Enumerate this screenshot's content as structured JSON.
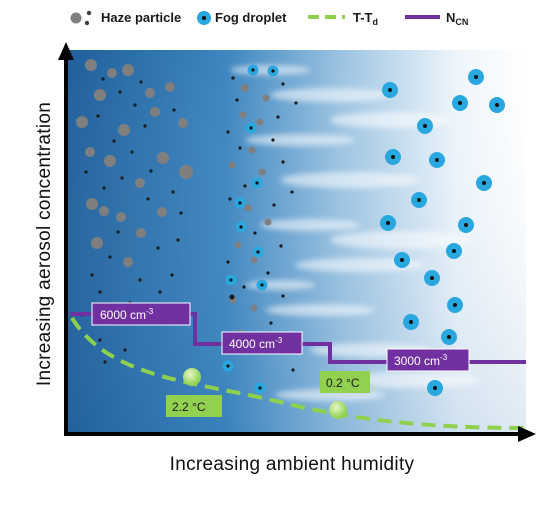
{
  "legend": {
    "haze_label": "Haze particle",
    "fog_label": "Fog droplet",
    "dewpoint_label": "T-T",
    "dewpoint_sub": "d",
    "ncn_label": "N",
    "ncn_sub": "CN"
  },
  "axes": {
    "x_title": "Increasing  ambient humidity",
    "y_title": "Increasing aerosol  concentration"
  },
  "ncn_levels": [
    {
      "value": "6000 cm",
      "exp": "-3"
    },
    {
      "value": "4000 cm",
      "exp": "-3"
    },
    {
      "value": "3000 cm",
      "exp": "-3"
    }
  ],
  "temperature_points": [
    {
      "label": "2.2 °C"
    },
    {
      "label": "0.2 °C"
    }
  ],
  "colors": {
    "haze_particle": "#7f7f7f",
    "fog_droplet": "#29a8e0",
    "dewpoint_curve": "#8fd14f",
    "ncn_line": "#7030a0",
    "ncn_label_bg": "#7030a0",
    "temp_label_bg": "#92d050"
  }
}
